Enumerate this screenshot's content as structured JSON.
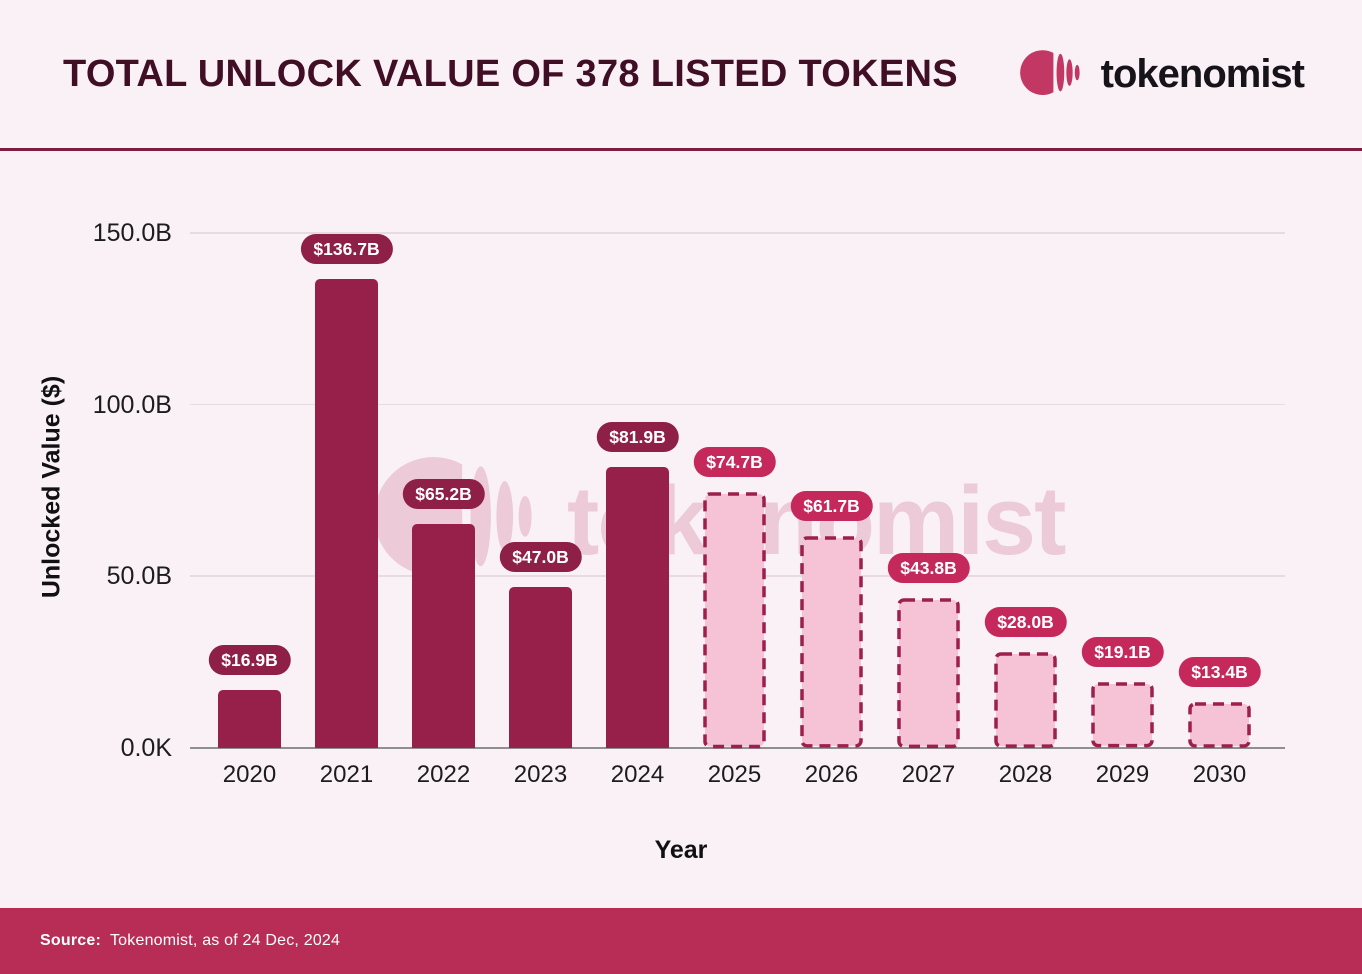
{
  "header": {
    "title": "TOTAL UNLOCK VALUE OF 378 LISTED TOKENS",
    "brand": "tokenomist"
  },
  "chart_data": {
    "type": "bar",
    "title": "TOTAL UNLOCK VALUE OF 378 LISTED TOKENS",
    "xlabel": "Year",
    "ylabel": "Unlocked Value ($)",
    "unit": "USD billions",
    "categories": [
      "2020",
      "2021",
      "2022",
      "2023",
      "2024",
      "2025",
      "2026",
      "2027",
      "2028",
      "2029",
      "2030"
    ],
    "values": [
      16.9,
      136.7,
      65.2,
      47.0,
      81.9,
      74.7,
      61.7,
      43.8,
      28.0,
      19.1,
      13.4
    ],
    "labels": [
      "$16.9B",
      "$136.7B",
      "$65.2B",
      "$47.0B",
      "$81.9B",
      "$74.7B",
      "$61.7B",
      "$43.8B",
      "$28.0B",
      "$19.1B",
      "$13.4B"
    ],
    "projected": [
      false,
      false,
      false,
      false,
      false,
      true,
      true,
      true,
      true,
      true,
      true
    ],
    "projected_style": "dashed",
    "yticks": [
      {
        "value": 0,
        "label": "0.0K"
      },
      {
        "value": 50,
        "label": "50.0B"
      },
      {
        "value": 100,
        "label": "100.0B"
      },
      {
        "value": 150,
        "label": "150.0B"
      }
    ],
    "ylim": [
      0,
      150
    ],
    "grid": true,
    "legend": "none"
  },
  "watermark": {
    "text": "tokenomist"
  },
  "footer": {
    "source_label": "Source:",
    "source_text": "Tokenomist, as of 24 Dec, 2024"
  },
  "colors": {
    "background": "#FAF1F6",
    "title_text": "#400F26",
    "divider": "#7E1C44",
    "bar_solid": "#97204B",
    "bar_projected_fill": "#F5C2D6",
    "bar_projected_border": "#9C1F4D",
    "badge_solid_bg": "#8E2048",
    "badge_projected_bg": "#C5295C",
    "badge_text": "#FFFFFF",
    "footer_bg": "#B72D55",
    "footer_text": "#FFFFFF",
    "axis_text": "#1C1C1C",
    "gridline": "#E7DAE0",
    "axis_line": "#8F8F8F",
    "logo_mark": "#C23763",
    "brand_text": "#16131A",
    "watermark": "#ECCAD8"
  }
}
